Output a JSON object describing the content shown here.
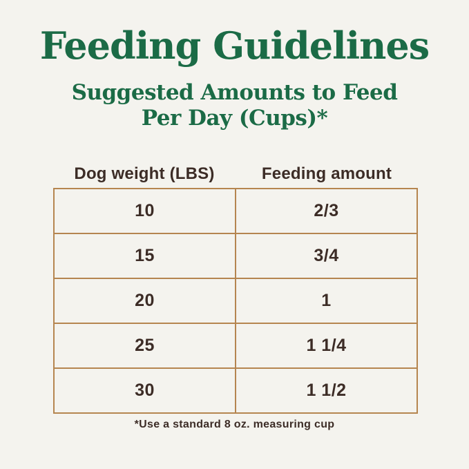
{
  "title": "Feeding Guidelines",
  "subtitle": {
    "line1": "Suggested Amounts to Feed",
    "line2": "Per Day (Cups)*"
  },
  "table": {
    "headers": [
      "Dog weight (LBS)",
      "Feeding amount"
    ],
    "rows": [
      [
        "10",
        "2/3"
      ],
      [
        "15",
        "3/4"
      ],
      [
        "20",
        "1"
      ],
      [
        "25",
        "1 1/4"
      ],
      [
        "30",
        "1 1/2"
      ]
    ]
  },
  "footnote": "*Use a standard 8 oz. measuring cup",
  "colors": {
    "background": "#f4f3ee",
    "heading_green": "#1b6b46",
    "table_border_tan": "#b5854f",
    "text_charcoal": "#3c2c26"
  },
  "chart_data": {
    "type": "table",
    "title": "Feeding Guidelines",
    "subtitle": "Suggested Amounts to Feed Per Day (Cups)*",
    "columns": [
      "Dog weight (LBS)",
      "Feeding amount"
    ],
    "rows": [
      [
        10,
        "2/3"
      ],
      [
        15,
        "3/4"
      ],
      [
        20,
        "1"
      ],
      [
        25,
        "1 1/4"
      ],
      [
        30,
        "1 1/2"
      ]
    ],
    "footnote": "*Use a standard 8 oz. measuring cup",
    "layout": "two-column centered table, header row unbordered, grid borders tan, cream background"
  }
}
